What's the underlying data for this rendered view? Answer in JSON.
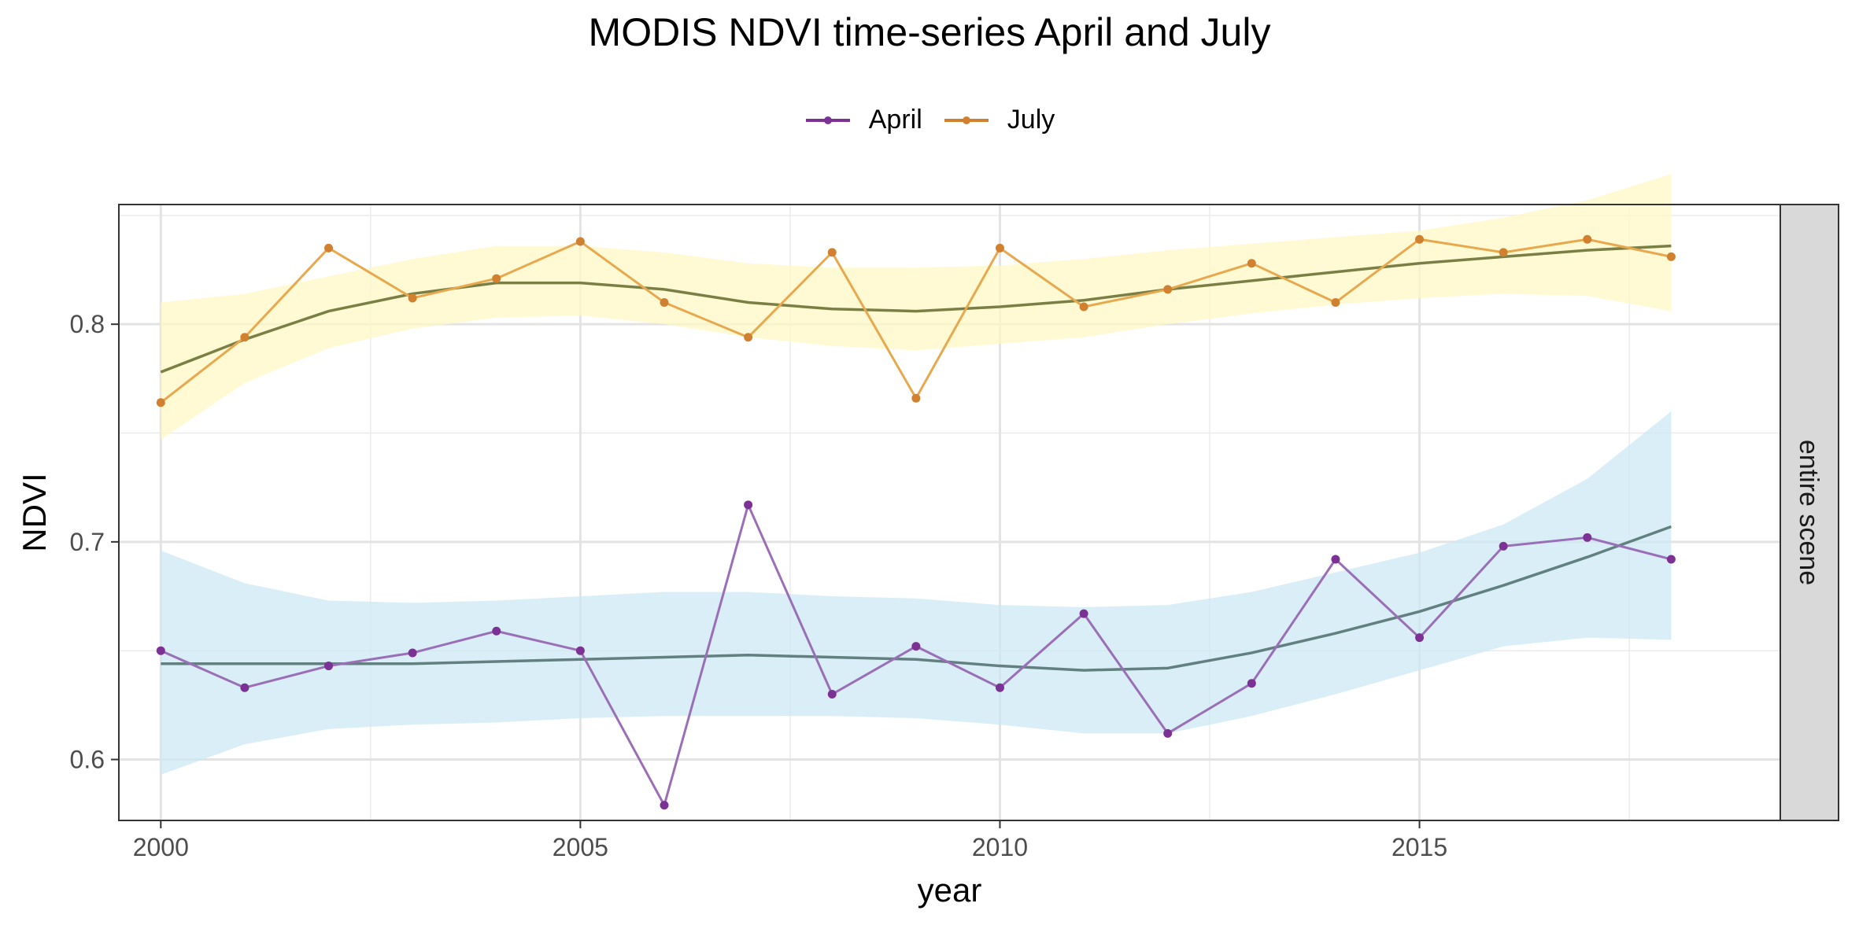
{
  "chart_data": {
    "type": "line",
    "title": "MODIS NDVI time-series April and July",
    "xlabel": "year",
    "ylabel": "NDVI",
    "facet_label": "entire scene",
    "xlim": [
      1999.5,
      2019.3
    ],
    "ylim": [
      0.572,
      0.855
    ],
    "x_ticks": [
      2000,
      2005,
      2010,
      2015
    ],
    "y_ticks": [
      0.6,
      0.7,
      0.8
    ],
    "grid": true,
    "legend_position": "top",
    "x": [
      2000,
      2001,
      2002,
      2003,
      2004,
      2005,
      2006,
      2007,
      2008,
      2009,
      2010,
      2011,
      2012,
      2013,
      2014,
      2015,
      2016,
      2017,
      2018
    ],
    "series": [
      {
        "name": "April",
        "color": "#7b3294",
        "point_color": "#9a6fb7",
        "values": [
          0.65,
          0.633,
          0.643,
          0.649,
          0.659,
          0.65,
          0.579,
          0.717,
          0.63,
          0.652,
          0.633,
          0.667,
          0.612,
          0.635,
          0.692,
          0.656,
          0.698,
          0.702,
          0.692
        ],
        "smooth": [
          0.644,
          0.644,
          0.644,
          0.644,
          0.645,
          0.646,
          0.647,
          0.648,
          0.647,
          0.646,
          0.643,
          0.641,
          0.642,
          0.649,
          0.658,
          0.668,
          0.68,
          0.693,
          0.707
        ],
        "smooth_color": "#61807f",
        "band_lower": [
          0.593,
          0.607,
          0.614,
          0.616,
          0.617,
          0.619,
          0.62,
          0.62,
          0.62,
          0.619,
          0.616,
          0.612,
          0.612,
          0.62,
          0.63,
          0.641,
          0.652,
          0.656,
          0.655
        ],
        "band_upper": [
          0.696,
          0.681,
          0.673,
          0.672,
          0.673,
          0.675,
          0.677,
          0.677,
          0.675,
          0.674,
          0.671,
          0.67,
          0.671,
          0.677,
          0.686,
          0.695,
          0.708,
          0.729,
          0.76
        ],
        "band_color": "#cde8f4"
      },
      {
        "name": "July",
        "color": "#d18030",
        "point_color": "#e8a84e",
        "values": [
          0.764,
          0.794,
          0.835,
          0.812,
          0.821,
          0.838,
          0.81,
          0.794,
          0.833,
          0.766,
          0.835,
          0.808,
          0.816,
          0.828,
          0.81,
          0.839,
          0.833,
          0.839,
          0.831
        ],
        "smooth": [
          0.778,
          0.793,
          0.806,
          0.814,
          0.819,
          0.819,
          0.816,
          0.81,
          0.807,
          0.806,
          0.808,
          0.811,
          0.816,
          0.82,
          0.824,
          0.828,
          0.831,
          0.834,
          0.836
        ],
        "smooth_color": "#7a8045",
        "band_lower": [
          0.747,
          0.773,
          0.789,
          0.798,
          0.803,
          0.804,
          0.8,
          0.794,
          0.79,
          0.788,
          0.791,
          0.794,
          0.8,
          0.805,
          0.809,
          0.812,
          0.814,
          0.813,
          0.806
        ],
        "band_upper": [
          0.81,
          0.814,
          0.822,
          0.83,
          0.836,
          0.836,
          0.833,
          0.828,
          0.826,
          0.826,
          0.827,
          0.83,
          0.834,
          0.837,
          0.84,
          0.843,
          0.849,
          0.857,
          0.869
        ],
        "band_color": "#fff8c6"
      }
    ]
  }
}
